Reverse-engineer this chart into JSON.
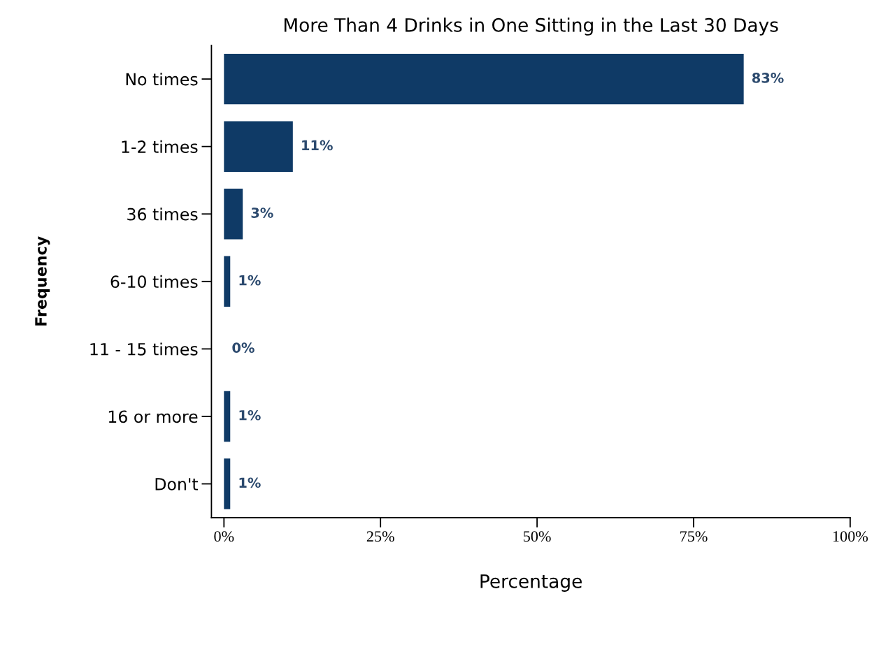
{
  "chart_data": {
    "type": "bar",
    "orientation": "horizontal",
    "title": "More Than 4 Drinks in One Sitting in the Last 30 Days",
    "xlabel": "Percentage",
    "ylabel": "Frequency",
    "categories": [
      "No times",
      "1-2 times",
      "36 times",
      "6-10 times",
      "11 - 15 times",
      "16 or more",
      "Don't"
    ],
    "values": [
      83,
      11,
      3,
      1,
      0,
      1,
      1
    ],
    "value_labels": [
      "83%",
      "11%",
      "3%",
      "1%",
      "0%",
      "1%",
      "1%"
    ],
    "color": "#0f3a66",
    "xlim": [
      -2,
      100
    ],
    "xticks": [
      {
        "value": 0,
        "label": "0%"
      },
      {
        "value": 25,
        "label": "25%"
      },
      {
        "value": 50,
        "label": "50%"
      },
      {
        "value": 75,
        "label": "75%"
      },
      {
        "value": 100,
        "label": "100%"
      }
    ],
    "grid": false
  }
}
